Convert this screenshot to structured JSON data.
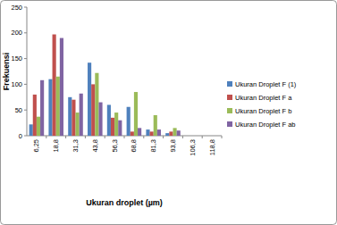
{
  "chart_data": {
    "type": "bar",
    "x_label": "Ukuran droplet (µm)",
    "y_label": "Frekuensi",
    "categories": [
      "6,25",
      "18,8",
      "31,3",
      "43,8",
      "56,3",
      "68,8",
      "81,3",
      "93,8",
      "106,3",
      "118,8"
    ],
    "series": [
      {
        "name": "Ukuran Droplet F (1)",
        "color": "#4f81bd",
        "values": [
          22,
          110,
          75,
          142,
          60,
          56,
          12,
          5,
          0,
          0
        ]
      },
      {
        "name": "Ukuran Droplet F a",
        "color": "#c0504d",
        "values": [
          80,
          197,
          70,
          100,
          35,
          8,
          8,
          8,
          0,
          0
        ]
      },
      {
        "name": "Ukuran Droplet F b",
        "color": "#9bbb59",
        "values": [
          37,
          115,
          45,
          122,
          45,
          85,
          40,
          15,
          0,
          0
        ]
      },
      {
        "name": "Ukuran Droplet F ab",
        "color": "#8064a2",
        "values": [
          108,
          190,
          82,
          65,
          30,
          15,
          12,
          10,
          0,
          0
        ]
      }
    ],
    "ylim": [
      0,
      250
    ],
    "yticks": [
      0,
      50,
      100,
      150,
      200,
      250
    ],
    "grid": false,
    "legend": "right"
  }
}
